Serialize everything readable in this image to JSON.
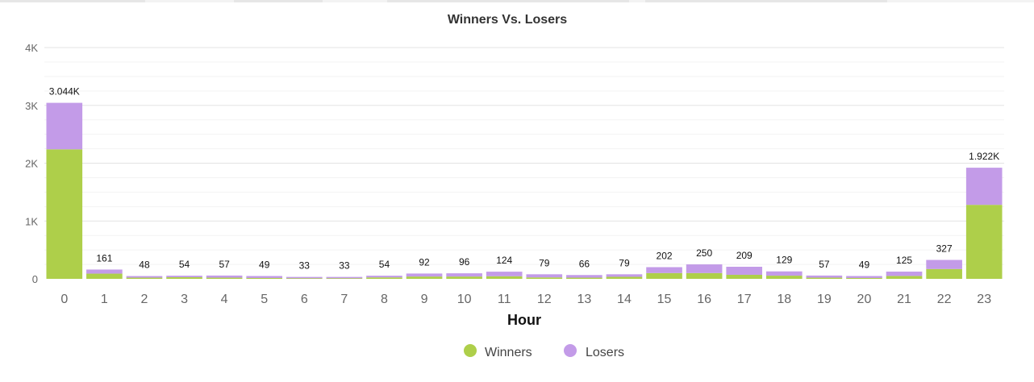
{
  "chart_data": {
    "type": "bar",
    "stacked": true,
    "title": "Winners Vs. Losers",
    "xlabel": "Hour",
    "ylabel": "",
    "ylim": [
      0,
      4000
    ],
    "yticks": [
      0,
      1000,
      2000,
      3000,
      4000
    ],
    "ytick_labels": [
      "0",
      "1K",
      "2K",
      "3K",
      "4K"
    ],
    "grid": true,
    "legend_position": "bottom-center",
    "categories": [
      "0",
      "1",
      "2",
      "3",
      "4",
      "5",
      "6",
      "7",
      "8",
      "9",
      "10",
      "11",
      "12",
      "13",
      "14",
      "15",
      "16",
      "17",
      "18",
      "19",
      "20",
      "21",
      "22",
      "23"
    ],
    "totals": [
      3044,
      161,
      48,
      54,
      57,
      49,
      33,
      33,
      54,
      92,
      96,
      124,
      79,
      66,
      79,
      202,
      250,
      209,
      129,
      57,
      49,
      125,
      327,
      1922
    ],
    "total_labels": [
      "3.044K",
      "161",
      "48",
      "54",
      "57",
      "49",
      "33",
      "33",
      "54",
      "92",
      "96",
      "124",
      "79",
      "66",
      "79",
      "202",
      "250",
      "209",
      "129",
      "57",
      "49",
      "125",
      "327",
      "1.922K"
    ],
    "series": [
      {
        "name": "Winners",
        "color": "#aecf4a",
        "values": [
          2240,
          90,
          20,
          28,
          20,
          15,
          10,
          10,
          25,
          40,
          40,
          45,
          25,
          20,
          35,
          100,
          100,
          70,
          55,
          20,
          15,
          50,
          170,
          1280
        ]
      },
      {
        "name": "Losers",
        "color": "#c39be8",
        "values": [
          804,
          71,
          28,
          26,
          37,
          34,
          23,
          23,
          29,
          52,
          56,
          79,
          54,
          46,
          44,
          102,
          150,
          139,
          74,
          37,
          34,
          75,
          157,
          642
        ]
      }
    ]
  }
}
